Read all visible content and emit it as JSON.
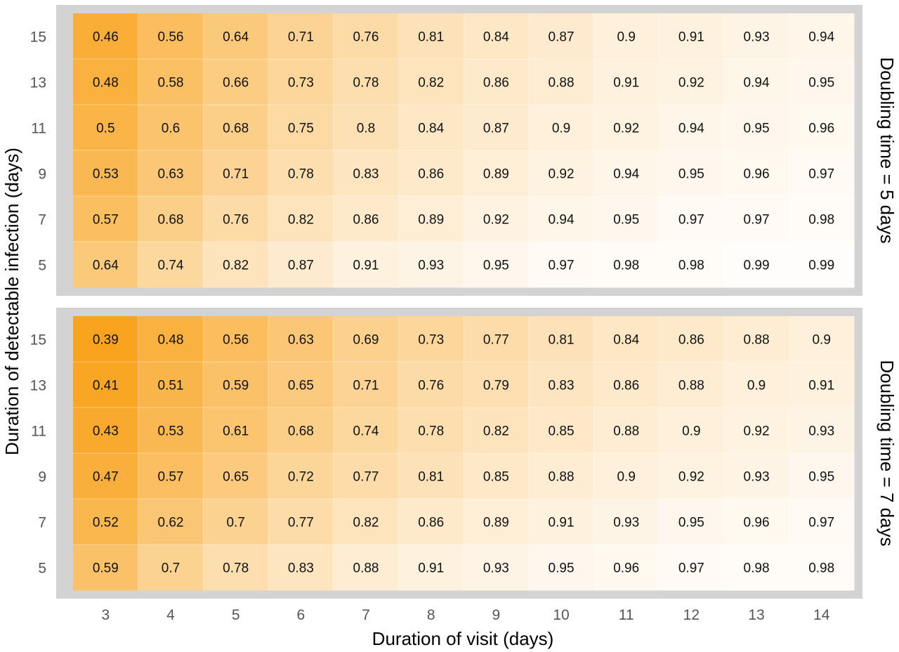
{
  "chart_data": {
    "type": "heatmap",
    "xlabel": "Duration of visit (days)",
    "ylabel": "Duration of detectable infection (days)",
    "x_ticks": [
      "3",
      "4",
      "5",
      "6",
      "7",
      "8",
      "9",
      "10",
      "11",
      "12",
      "13",
      "14"
    ],
    "y_ticks": [
      "15",
      "13",
      "11",
      "9",
      "7",
      "5"
    ],
    "color_low": "#f9a31e",
    "color_high": "#ffffff",
    "value_range": [
      0.39,
      1.0
    ],
    "panel_background": "#d3d3d3",
    "panels": [
      {
        "strip_label": "Doubling time = 5 days",
        "rows": [
          [
            "0.46",
            "0.56",
            "0.64",
            "0.71",
            "0.76",
            "0.81",
            "0.84",
            "0.87",
            "0.9",
            "0.91",
            "0.93",
            "0.94"
          ],
          [
            "0.48",
            "0.58",
            "0.66",
            "0.73",
            "0.78",
            "0.82",
            "0.86",
            "0.88",
            "0.91",
            "0.92",
            "0.94",
            "0.95"
          ],
          [
            "0.5",
            "0.6",
            "0.68",
            "0.75",
            "0.8",
            "0.84",
            "0.87",
            "0.9",
            "0.92",
            "0.94",
            "0.95",
            "0.96"
          ],
          [
            "0.53",
            "0.63",
            "0.71",
            "0.78",
            "0.83",
            "0.86",
            "0.89",
            "0.92",
            "0.94",
            "0.95",
            "0.96",
            "0.97"
          ],
          [
            "0.57",
            "0.68",
            "0.76",
            "0.82",
            "0.86",
            "0.89",
            "0.92",
            "0.94",
            "0.95",
            "0.97",
            "0.97",
            "0.98"
          ],
          [
            "0.64",
            "0.74",
            "0.82",
            "0.87",
            "0.91",
            "0.93",
            "0.95",
            "0.97",
            "0.98",
            "0.98",
            "0.99",
            "0.99"
          ]
        ]
      },
      {
        "strip_label": "Doubling time = 7 days",
        "rows": [
          [
            "0.39",
            "0.48",
            "0.56",
            "0.63",
            "0.69",
            "0.73",
            "0.77",
            "0.81",
            "0.84",
            "0.86",
            "0.88",
            "0.9"
          ],
          [
            "0.41",
            "0.51",
            "0.59",
            "0.65",
            "0.71",
            "0.76",
            "0.79",
            "0.83",
            "0.86",
            "0.88",
            "0.9",
            "0.91"
          ],
          [
            "0.43",
            "0.53",
            "0.61",
            "0.68",
            "0.74",
            "0.78",
            "0.82",
            "0.85",
            "0.88",
            "0.9",
            "0.92",
            "0.93"
          ],
          [
            "0.47",
            "0.57",
            "0.65",
            "0.72",
            "0.77",
            "0.81",
            "0.85",
            "0.88",
            "0.9",
            "0.92",
            "0.93",
            "0.95"
          ],
          [
            "0.52",
            "0.62",
            "0.7",
            "0.77",
            "0.82",
            "0.86",
            "0.89",
            "0.91",
            "0.93",
            "0.95",
            "0.96",
            "0.97"
          ],
          [
            "0.59",
            "0.7",
            "0.78",
            "0.83",
            "0.88",
            "0.91",
            "0.93",
            "0.95",
            "0.96",
            "0.97",
            "0.98",
            "0.98"
          ]
        ]
      }
    ]
  }
}
